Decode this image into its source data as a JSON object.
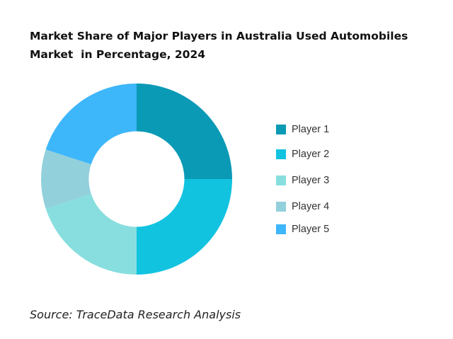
{
  "chart_data": {
    "type": "pie",
    "title_lines": [
      "Market Share of Major Players in Australia Used Automobiles",
      "Market  in Percentage, 2024"
    ],
    "categories": [
      "Player 1",
      "Player 2",
      "Player 3",
      "Player 4",
      "Player 5"
    ],
    "values": [
      25,
      25,
      20,
      10,
      20
    ],
    "colors": [
      "#0a9ab5",
      "#12c3e0",
      "#88dede",
      "#92d0dc",
      "#3eb6fa"
    ],
    "inner_radius_ratio": 0.5,
    "legend_position": "right",
    "source": "Source: TraceData Research Analysis"
  }
}
